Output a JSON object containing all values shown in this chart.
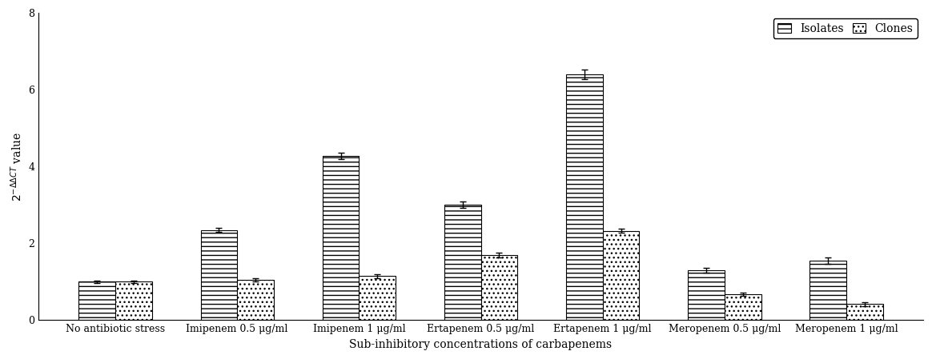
{
  "categories": [
    "No antibiotic stress",
    "Imipenem 0.5 μg/ml",
    "Imipenem 1 μg/ml",
    "Ertapenem 0.5 μg/ml",
    "Ertapenem 1 μg/ml",
    "Meropenem 0.5 μg/ml",
    "Meropenem 1 μg/ml"
  ],
  "isolates_values": [
    1.0,
    2.35,
    4.28,
    3.0,
    6.4,
    1.3,
    1.55
  ],
  "clones_values": [
    1.0,
    1.05,
    1.15,
    1.7,
    2.33,
    0.68,
    0.42
  ],
  "isolates_errors": [
    0.04,
    0.06,
    0.08,
    0.08,
    0.12,
    0.07,
    0.08
  ],
  "clones_errors": [
    0.04,
    0.04,
    0.05,
    0.06,
    0.06,
    0.04,
    0.05
  ],
  "xlabel": "Sub-inhibitory concentrations of carbapenems",
  "ylim": [
    0,
    8
  ],
  "yticks": [
    0,
    2,
    4,
    6,
    8
  ],
  "legend_labels": [
    "Isolates",
    "Clones"
  ],
  "bar_width": 0.3,
  "isolates_hatch": "---",
  "clones_hatch": "...",
  "isolates_color": "white",
  "clones_color": "white",
  "isolates_edgecolor": "black",
  "clones_edgecolor": "black",
  "background_color": "white",
  "axis_fontsize": 10,
  "tick_fontsize": 9,
  "legend_fontsize": 10
}
